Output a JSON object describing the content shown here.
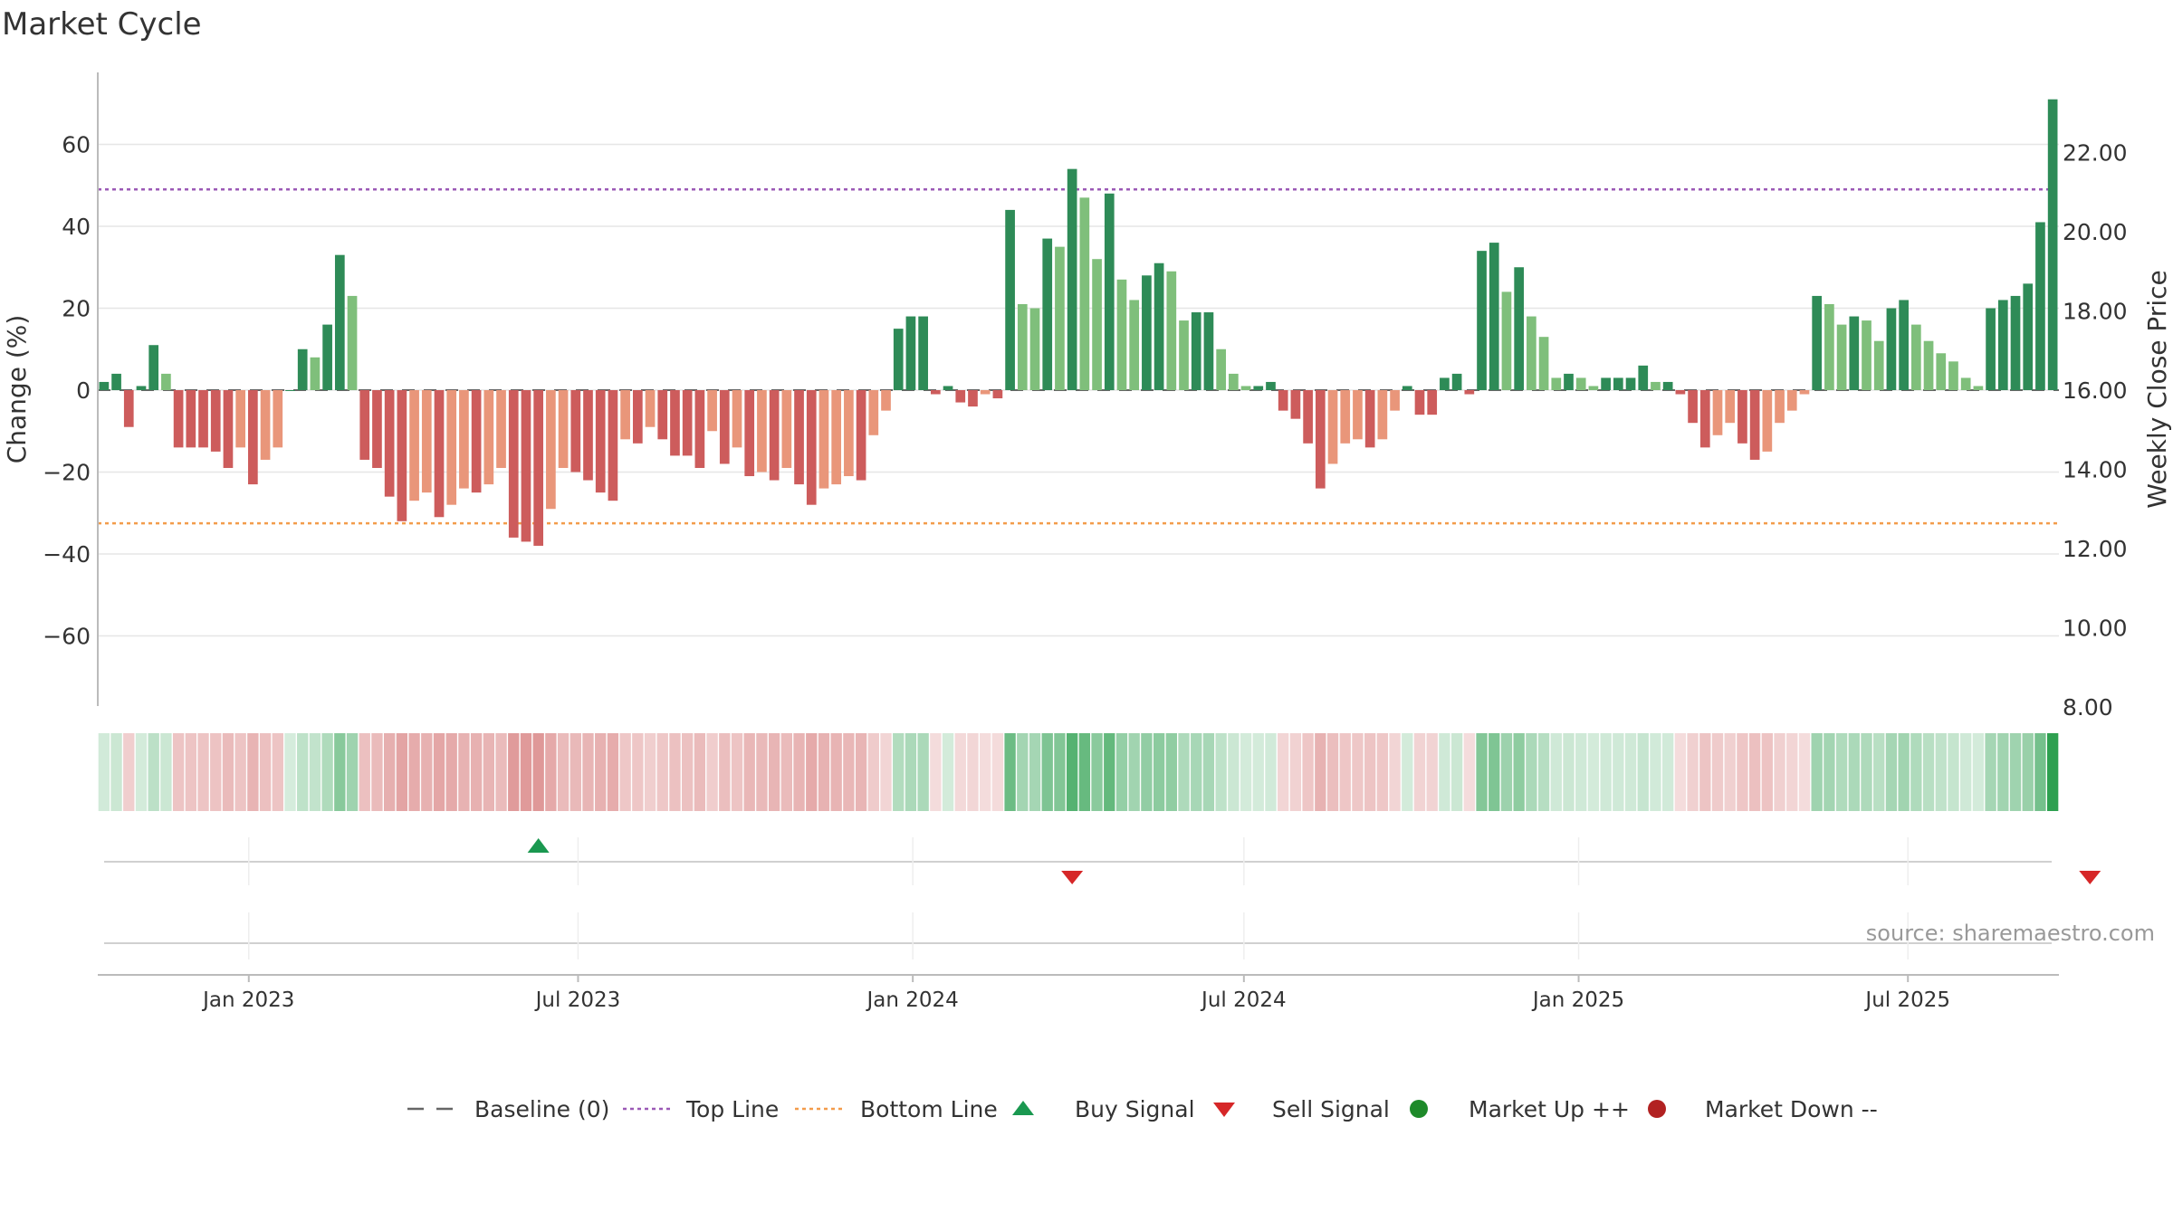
{
  "chart_data": {
    "type": "bar",
    "title": "Market Cycle",
    "ylabel": "Change (%)",
    "y2label": "Weekly Close Price",
    "ylim": [
      -78,
      78
    ],
    "y2lim": [
      7.0,
      24.0
    ],
    "yticks": [
      60,
      40,
      20,
      0,
      -20,
      -40,
      -60
    ],
    "ytick_labels": [
      "60",
      "40",
      "20",
      "0",
      "−20",
      "−40",
      "−60"
    ],
    "y2ticks": [
      22,
      20,
      18,
      16,
      14,
      12,
      10,
      8
    ],
    "y2tick_labels": [
      "22.00",
      "20.00",
      "18.00",
      "16.00",
      "14.00",
      "12.00",
      "10.00",
      "8.00"
    ],
    "x_start": "2022-10-10",
    "x_end": "2025-09-22",
    "xticks": [
      "2023-01-01",
      "2023-07-01",
      "2024-01-01",
      "2024-07-01",
      "2025-01-01",
      "2025-07-01"
    ],
    "xtick_labels": [
      "Jan 2023",
      "Jul 2023",
      "Jan 2024",
      "Jul 2024",
      "Jan 2025",
      "Jul 2025"
    ],
    "top_line": 49,
    "bottom_line": -32.5,
    "baseline": 0,
    "values": [
      2,
      4,
      -9,
      1,
      11,
      4,
      -14,
      -14,
      -14,
      -15,
      -19,
      -14,
      -23,
      -17,
      -14,
      0,
      10,
      8,
      16,
      33,
      23,
      -17,
      -19,
      -26,
      -32,
      -27,
      -25,
      -31,
      -28,
      -24,
      -25,
      -23,
      -19,
      -36,
      -37,
      -38,
      -29,
      -19,
      -20,
      -22,
      -25,
      -27,
      -12,
      -13,
      -9,
      -12,
      -16,
      -16,
      -19,
      -10,
      -18,
      -14,
      -21,
      -20,
      -22,
      -19,
      -23,
      -28,
      -24,
      -23,
      -21,
      -22,
      -11,
      -5,
      15,
      18,
      18,
      -1,
      1,
      -3,
      -4,
      -1,
      -2,
      44,
      21,
      20,
      37,
      35,
      54,
      47,
      32,
      48,
      27,
      22,
      28,
      31,
      29,
      17,
      19,
      19,
      10,
      4,
      1,
      1,
      2,
      -5,
      -7,
      -13,
      -24,
      -18,
      -13,
      -12,
      -14,
      -12,
      -5,
      1,
      -6,
      -6,
      3,
      4,
      -1,
      34,
      36,
      24,
      30,
      18,
      13,
      3,
      4,
      3,
      1,
      3,
      3,
      3,
      6,
      2,
      2,
      -1,
      -8,
      -14,
      -11,
      -8,
      -13,
      -17,
      -15,
      -8,
      -5,
      -1,
      23,
      21,
      16,
      18,
      17,
      12,
      20,
      22,
      16,
      12,
      9,
      7,
      3,
      1,
      20,
      22,
      23,
      26,
      41,
      71
    ],
    "signals": [
      {
        "type": "buy",
        "index": 35
      },
      {
        "type": "sell",
        "index": 78
      },
      {
        "type": "sell",
        "index": 160
      }
    ],
    "market_up": [],
    "market_down": []
  },
  "legend": {
    "items": [
      {
        "label": "Baseline (0)",
        "symbol": "dash-gray"
      },
      {
        "label": "Top Line",
        "symbol": "dot-purple"
      },
      {
        "label": "Bottom Line",
        "symbol": "dot-orange"
      },
      {
        "label": "Buy Signal",
        "symbol": "triangle-up-green"
      },
      {
        "label": "Sell Signal",
        "symbol": "triangle-down-red"
      },
      {
        "label": "Market Up ++",
        "symbol": "circle-green"
      },
      {
        "label": "Market Down --",
        "symbol": "circle-red"
      }
    ]
  },
  "source_text": "source: sharemaestro.com",
  "colors": {
    "pos_strong": "#2e8b57",
    "pos_light": "#7fbf7b",
    "neg_strong": "#cd5c5c",
    "neg_light": "#e9967a",
    "top_line": "#9b59b6",
    "bottom_line": "#f39c4b",
    "buy": "#1a9850",
    "sell": "#d62728",
    "market_up": "#1e8a2a",
    "market_down": "#b22222",
    "grid": "#e6e6e6",
    "text": "#333333"
  }
}
